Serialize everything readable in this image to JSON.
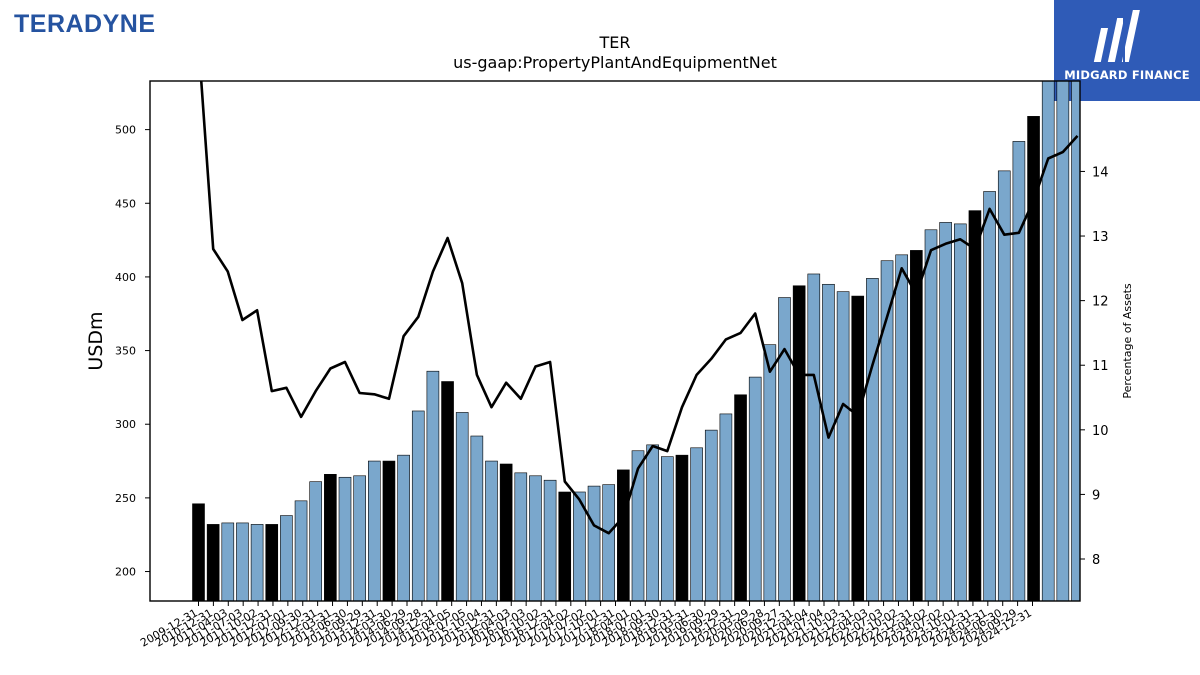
{
  "branding": {
    "left_logo_text": "TERADYNE",
    "right_logo_text": "MIDGARD FINANCE",
    "right_logo_bg": "#2f5bb7",
    "left_logo_color": "#2553a0"
  },
  "chart_data": {
    "type": "bar",
    "title": "TER",
    "subtitle": "us-gaap:PropertyPlantAndEquipmentNet",
    "ylabel": "USDm",
    "y2label": "Percentage of Assets",
    "ylim": [
      180,
      533
    ],
    "y2lim": [
      7.35,
      15.4
    ],
    "yticks": [
      200,
      250,
      300,
      350,
      400,
      450,
      500
    ],
    "y2ticks": [
      8,
      9,
      10,
      11,
      12,
      13,
      14
    ],
    "grid": false,
    "bar_color": "#7aa7cc",
    "highlight_color": "#000000",
    "line_color": "#000000",
    "categories": [
      "2009-12-31",
      "2010-04-04",
      "2010-07-04",
      "2010-10-03",
      "2010-12-31",
      "2011-04-03",
      "2011-07-03",
      "2011-10-02",
      "2011-12-31",
      "2012-04-01",
      "2012-07-01",
      "2012-09-30",
      "2012-12-31",
      "2013-03-31",
      "2013-06-30",
      "2013-09-29",
      "2013-12-31",
      "2014-03-30",
      "2014-06-29",
      "2014-09-28",
      "2014-12-31",
      "2015-04-05",
      "2015-07-05",
      "2015-10-04",
      "2015-12-31",
      "2016-04-03",
      "2016-07-03",
      "2016-10-02",
      "2016-12-31",
      "2017-04-02",
      "2017-07-02",
      "2017-10-01",
      "2017-12-31",
      "2018-04-01",
      "2018-07-01",
      "2018-09-30",
      "2018-12-31",
      "2019-03-31",
      "2019-06-30",
      "2019-09-29",
      "2019-12-31",
      "2020-03-29",
      "2020-06-28",
      "2020-09-27",
      "2020-12-31",
      "2021-04-04",
      "2021-07-04",
      "2021-10-03",
      "2021-12-31",
      "2022-04-03",
      "2022-07-03",
      "2022-10-02",
      "2022-12-31",
      "2023-04-02",
      "2023-07-02",
      "2023-10-01",
      "2023-12-31",
      "2024-03-31",
      "2024-06-30",
      "2024-09-29",
      "2024-12-31"
    ],
    "tick_labels": [
      "2009-12-31",
      "2010-12-31",
      "2011-04-03",
      "2011-07-03",
      "2011-10-02",
      "2011-12-31",
      "2012-07-01",
      "2012-09-30",
      "2012-12-31",
      "2013-03-31",
      "2013-06-30",
      "2013-09-29",
      "2013-12-31",
      "2014-03-30",
      "2014-06-29",
      "2014-09-28",
      "2014-12-31",
      "2015-04-05",
      "2015-07-05",
      "2015-10-04",
      "2015-12-31",
      "2016-04-03",
      "2016-07-03",
      "2016-10-02",
      "2016-12-31",
      "2017-04-02",
      "2017-07-02",
      "2017-10-01",
      "2017-12-31",
      "2018-04-01",
      "2018-07-01",
      "2018-09-30",
      "2018-12-31",
      "2019-03-31",
      "2019-06-30",
      "2019-09-29",
      "2019-12-31",
      "2020-03-29",
      "2020-06-28",
      "2020-09-27",
      "2020-12-31",
      "2021-04-04",
      "2021-07-04",
      "2021-10-03",
      "2021-12-31",
      "2022-04-03",
      "2022-07-03",
      "2022-10-02",
      "2022-12-31",
      "2023-04-02",
      "2023-07-02",
      "2023-10-01",
      "2023-12-31",
      "2024-03-31",
      "2024-06-30",
      "2024-09-29",
      "2024-12-31"
    ],
    "series": [
      {
        "type": "bar",
        "axis": "left",
        "values": [
          246,
          232,
          233,
          233,
          232,
          232,
          238,
          248,
          261,
          266,
          264,
          265,
          275,
          275,
          279,
          309,
          336,
          329,
          308,
          292,
          275,
          273,
          267,
          265,
          262,
          254,
          254,
          258,
          259,
          269,
          282,
          286,
          278,
          279,
          284,
          296,
          307,
          320,
          332,
          354,
          386,
          394,
          402,
          395,
          390,
          387,
          399,
          411,
          415,
          418,
          432,
          437,
          436,
          445,
          458,
          472,
          492,
          509,
          535,
          547,
          548
        ],
        "highlight": [
          true,
          true,
          false,
          false,
          false,
          true,
          false,
          false,
          false,
          true,
          false,
          false,
          false,
          true,
          false,
          false,
          false,
          true,
          false,
          false,
          false,
          true,
          false,
          false,
          false,
          true,
          false,
          false,
          false,
          true,
          false,
          false,
          false,
          true,
          false,
          false,
          false,
          true,
          false,
          false,
          false,
          true,
          false,
          false,
          false,
          true,
          false,
          false,
          false,
          true,
          false,
          false,
          false,
          true,
          false,
          false,
          false,
          true,
          false,
          false,
          false
        ]
      },
      {
        "type": "line",
        "axis": "right",
        "values": [
          16.0,
          12.8,
          12.45,
          11.7,
          11.85,
          10.6,
          10.65,
          10.2,
          10.6,
          10.95,
          11.05,
          10.57,
          10.55,
          10.48,
          11.45,
          11.75,
          12.45,
          12.97,
          12.27,
          10.85,
          10.35,
          10.73,
          10.48,
          10.98,
          11.05,
          9.2,
          8.92,
          8.52,
          8.4,
          8.65,
          9.4,
          9.75,
          9.67,
          10.35,
          10.85,
          11.1,
          11.4,
          11.5,
          11.8,
          10.9,
          11.25,
          10.85,
          10.85,
          9.88,
          10.4,
          10.22,
          11.0,
          11.75,
          12.5,
          12.1,
          12.78,
          12.88,
          12.95,
          12.8,
          13.42,
          13.02,
          13.05,
          13.55,
          14.2,
          14.3,
          14.55
        ]
      }
    ]
  }
}
